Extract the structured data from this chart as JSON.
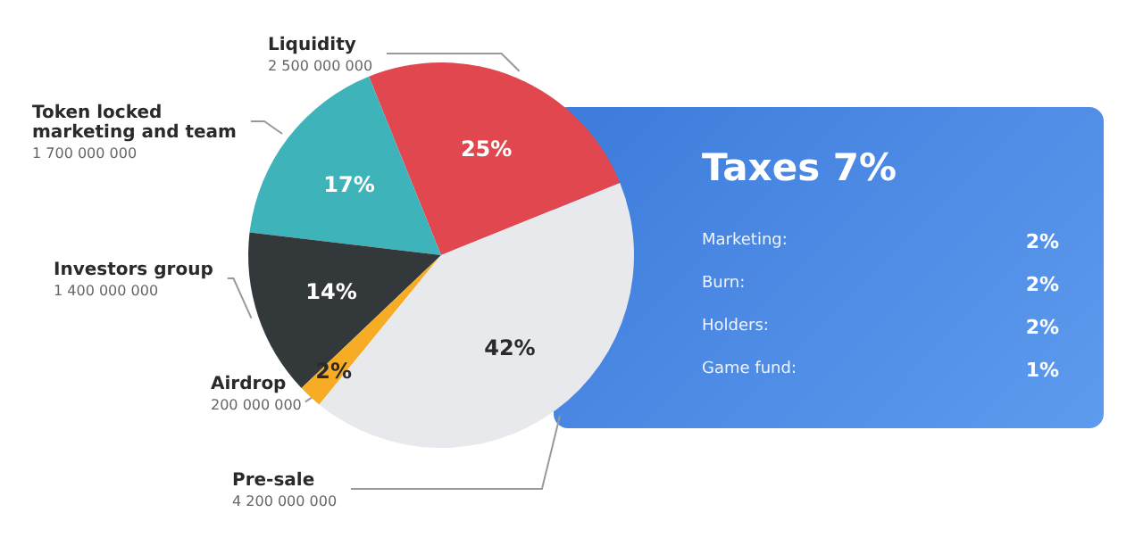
{
  "chart_data": [
    {
      "type": "pie",
      "categories": [
        "Liquidity",
        "Token locked\nmarketing and team",
        "Investors group",
        "Airdrop",
        "Pre-sale"
      ],
      "values": [
        25,
        17,
        14,
        2,
        42
      ],
      "colors": [
        "#e0474f",
        "#3eb3b9",
        "#33383b",
        "#f6ac25",
        "#e8e9ec"
      ],
      "value_labels": [
        "25%",
        "17%",
        "14%",
        "2%",
        "42%"
      ],
      "annotations": [
        "2 500 000 000",
        "1 700 000 000",
        "1 400 000 000",
        "200 000 000",
        "4 200 000 000"
      ]
    },
    {
      "type": "other",
      "title": "Taxes 7%",
      "annotations": [
        "Marketing:",
        "2%",
        "Burn:",
        "2%",
        "Holders:",
        "2%",
        "Game fund:",
        "1%"
      ]
    }
  ]
}
